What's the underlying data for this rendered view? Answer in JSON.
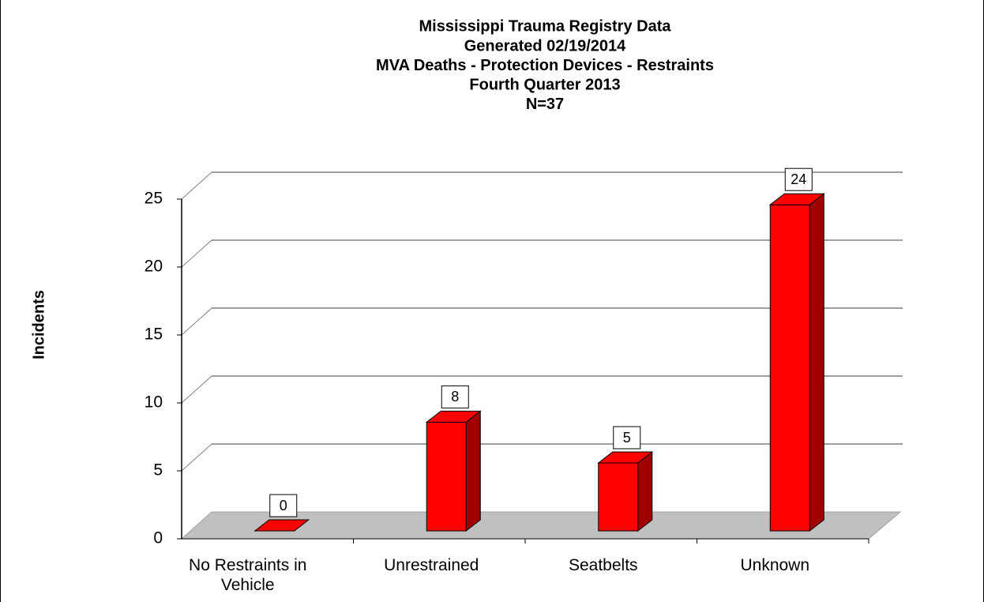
{
  "chart_data": {
    "type": "bar3d",
    "title": "Mississippi Trauma Registry Data",
    "subtitle": [
      "Generated 02/19/2014",
      "MVA Deaths - Protection Devices - Restraints",
      "Fourth Quarter 2013",
      "N=37"
    ],
    "ylabel": "Incidents",
    "categories": [
      "No Restraints in Vehicle",
      "Unrestrained",
      "Seatbelts",
      "Unknown"
    ],
    "values": [
      0,
      8,
      5,
      24
    ],
    "color": "#ff0000",
    "ylim": [
      0,
      25
    ],
    "yticks": [
      0,
      5,
      10,
      15,
      20,
      25
    ],
    "grid": true
  }
}
